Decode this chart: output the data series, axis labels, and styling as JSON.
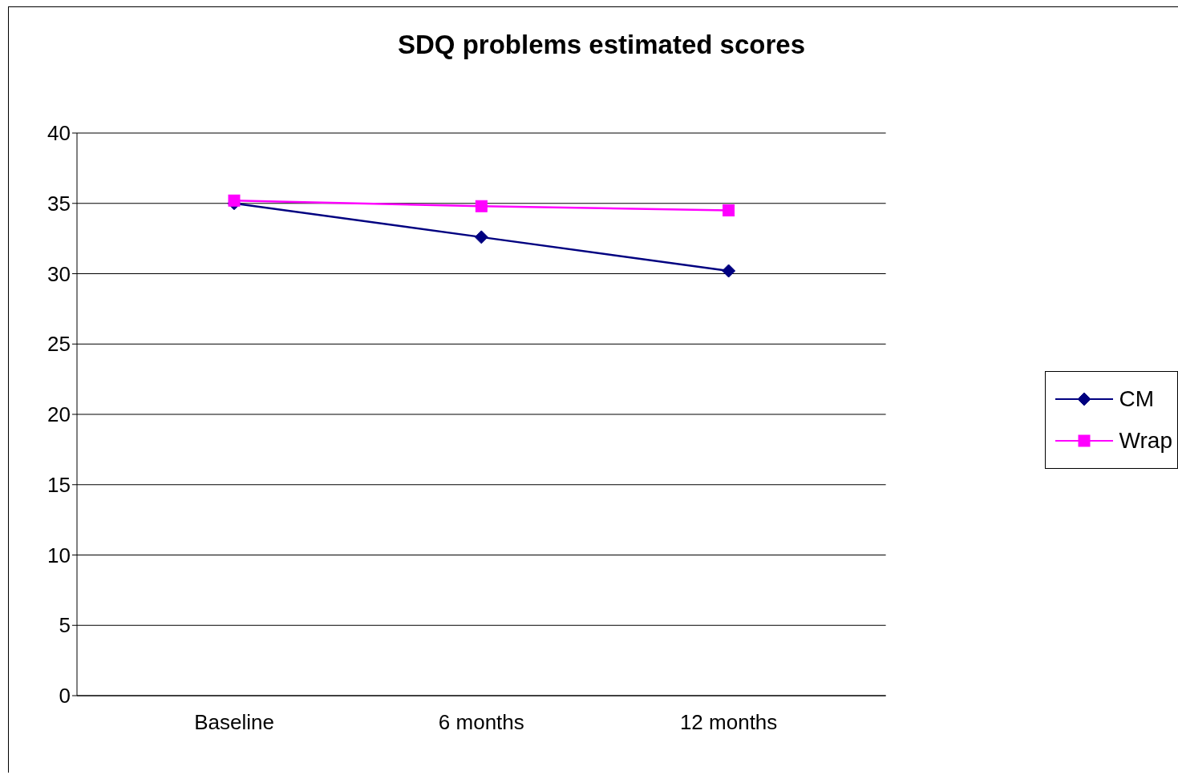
{
  "chart_data": {
    "type": "line",
    "title": "SDQ problems estimated scores",
    "categories": [
      "Baseline",
      "6 months",
      "12 months"
    ],
    "series": [
      {
        "name": "CM",
        "color": "#000080",
        "marker": "diamond",
        "values": [
          35.0,
          32.6,
          30.2
        ]
      },
      {
        "name": "Wrap",
        "color": "#ff00ff",
        "marker": "square",
        "values": [
          35.2,
          34.8,
          34.5
        ]
      }
    ],
    "ylim": [
      0,
      40
    ],
    "yticks": [
      0,
      5,
      10,
      15,
      20,
      25,
      30,
      35,
      40
    ],
    "grid": "y",
    "legend": "right",
    "line_style": "solid"
  }
}
